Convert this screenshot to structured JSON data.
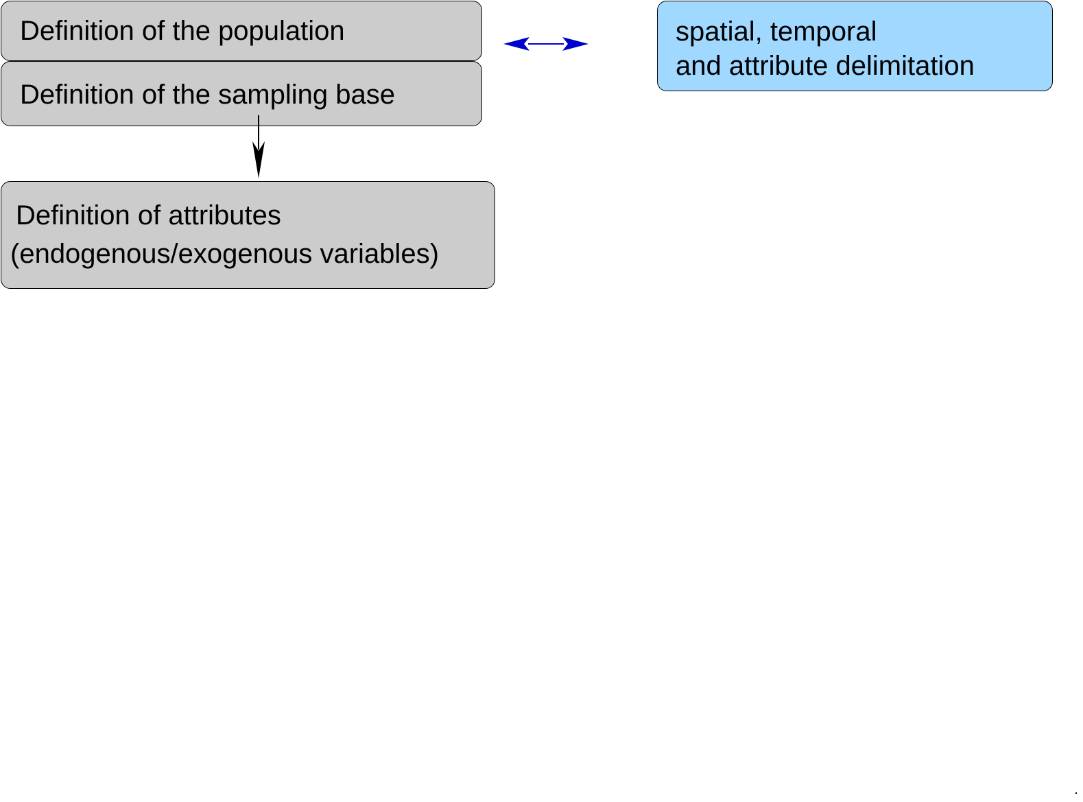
{
  "colors": {
    "box_gray": "#cccccc",
    "box_blue": "#a0d8ff",
    "arrow_black": "#000000",
    "arrow_blue": "#0000cc"
  },
  "boxes": {
    "population": {
      "lines": [
        "Definition of the population"
      ]
    },
    "sampling_base": {
      "lines": [
        "Definition of the sampling base"
      ]
    },
    "attributes": {
      "lines": [
        "Definition of attributes",
        "(endogenous/exogenous variables)"
      ]
    },
    "delimitation": {
      "lines": [
        "spatial, temporal",
        "and attribute delimitation"
      ]
    }
  }
}
